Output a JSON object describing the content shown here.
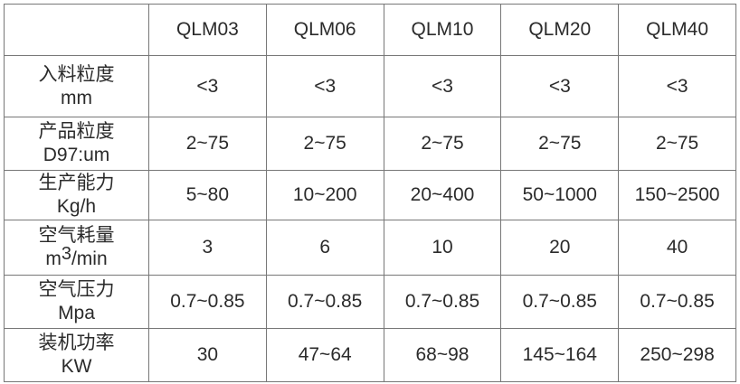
{
  "colors": {
    "background": "#ffffff",
    "border": "#777777",
    "text": "#2b2b2b"
  },
  "chart_data": {
    "type": "table",
    "title": "",
    "columns": [
      "",
      "QLM03",
      "QLM06",
      "QLM10",
      "QLM20",
      "QLM40"
    ],
    "rows": [
      {
        "name": "入料粒度",
        "unit": "mm",
        "values": [
          "<3",
          "<3",
          "<3",
          "<3",
          "<3"
        ]
      },
      {
        "name": "产品粒度",
        "unit": "D97:um",
        "values": [
          "2~75",
          "2~75",
          "2~75",
          "2~75",
          "2~75"
        ]
      },
      {
        "name": "生产能力",
        "unit": "Kg/h",
        "values": [
          "5~80",
          "10~200",
          "20~400",
          "50~1000",
          "150~2500"
        ]
      },
      {
        "name": "空气耗量",
        "unit": "m³/min",
        "values": [
          "3",
          "6",
          "10",
          "20",
          "40"
        ]
      },
      {
        "name": "空气压力",
        "unit": "Mpa",
        "values": [
          "0.7~0.85",
          "0.7~0.85",
          "0.7~0.85",
          "0.7~0.85",
          "0.7~0.85"
        ]
      },
      {
        "name": "装机功率",
        "unit": "KW",
        "values": [
          "30",
          "47~64",
          "68~98",
          "145~164",
          "250~298"
        ]
      }
    ]
  }
}
